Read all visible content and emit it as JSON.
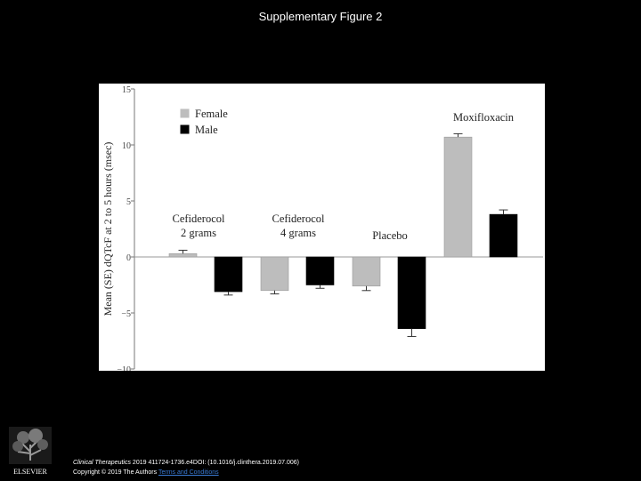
{
  "slide": {
    "title": "Supplementary Figure 2"
  },
  "chart_data": {
    "type": "bar",
    "title": "",
    "xlabel": "",
    "ylabel": "Mean (SE) dQTcF at 2 to 5 hours (msec)",
    "ylim": [
      -10,
      15
    ],
    "yticks": [
      15,
      10,
      5,
      0,
      -5,
      -10
    ],
    "ytick_labels": [
      "15",
      "10",
      "5",
      "0",
      "−5",
      "−10"
    ],
    "categories": [
      "Cefiderocol 2 grams",
      "Cefiderocol 4 grams",
      "Placebo",
      "Moxifloxacin"
    ],
    "category_labels": [
      [
        "Cefiderocol",
        "2 grams"
      ],
      [
        "Cefiderocol",
        "4 grams"
      ],
      [
        "Placebo"
      ],
      [
        "Moxifloxacin"
      ]
    ],
    "series": [
      {
        "name": "Female",
        "color": "#bdbdbd",
        "values": [
          0.3,
          -3.0,
          -2.6,
          10.7
        ],
        "se": [
          0.3,
          0.3,
          0.4,
          0.3
        ]
      },
      {
        "name": "Male",
        "color": "#000000",
        "values": [
          -3.1,
          -2.5,
          -6.4,
          3.8
        ],
        "se": [
          0.3,
          0.3,
          0.7,
          0.4
        ]
      }
    ],
    "legend_position": "top-left",
    "grid": false
  },
  "publisher": {
    "logo_text": "ELSEVIER"
  },
  "citation": {
    "journal": "Clinical Therapeutics",
    "ref": " 2019 411724-1736.e4DOI: (10.1016/j.clinthera.2019.07.006)",
    "copyright": "Copyright © 2019 The Authors ",
    "link": "Terms and Conditions"
  }
}
